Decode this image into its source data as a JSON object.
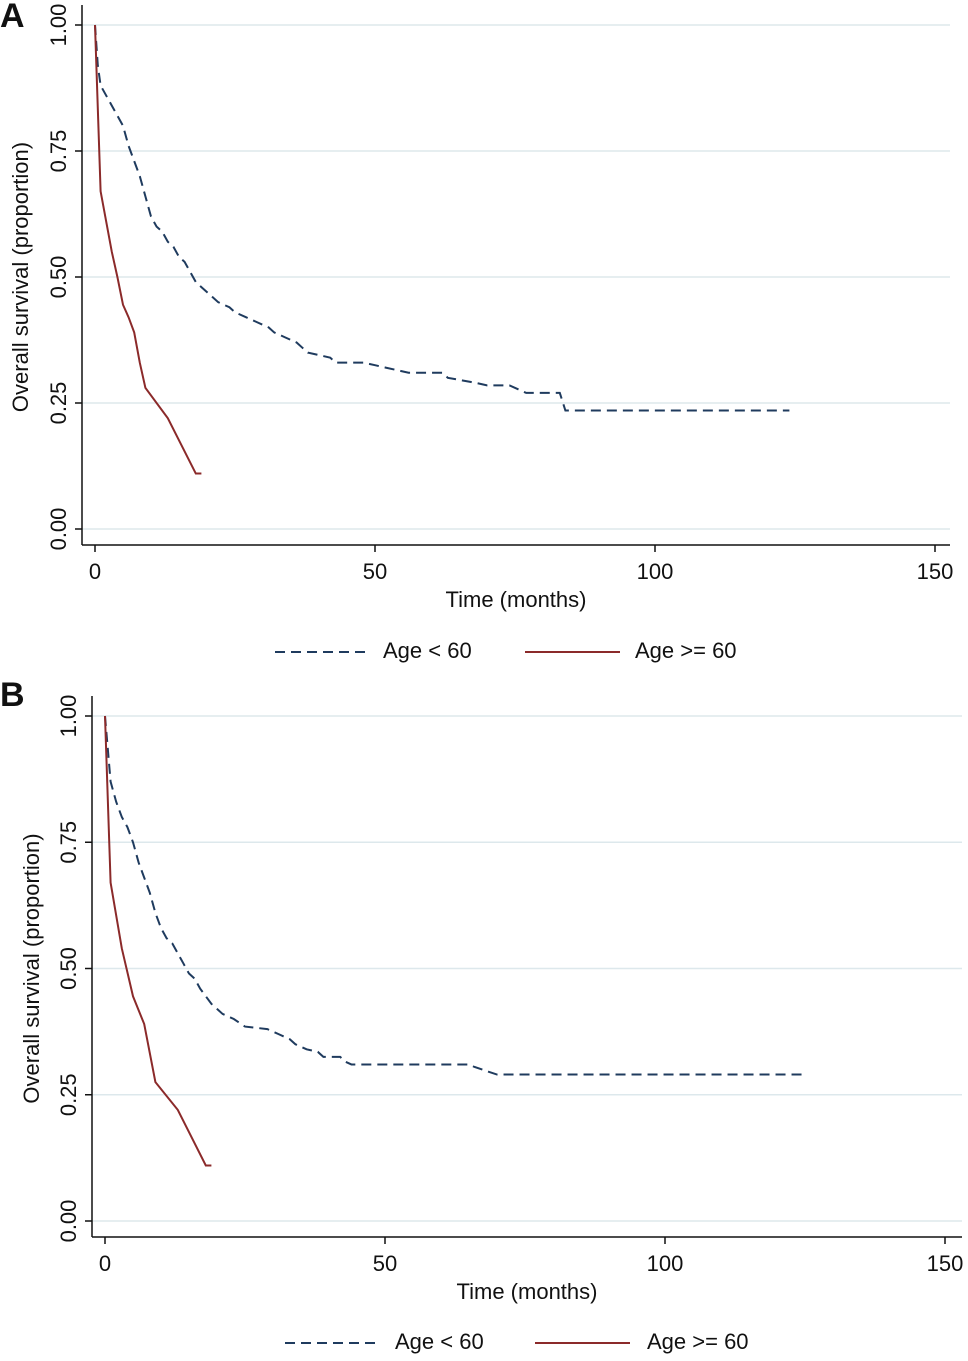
{
  "chart_data": [
    {
      "type": "line",
      "panel_label": "A",
      "xlabel": "Time (months)",
      "ylabel": "Overall survival (proportion)",
      "xlim": [
        0,
        150
      ],
      "xticks": [
        0,
        50,
        100,
        150
      ],
      "ylim": [
        0,
        1
      ],
      "yticks": [
        {
          "value": 0,
          "label": "0.00"
        },
        {
          "value": 0.25,
          "label": "0.25"
        },
        {
          "value": 0.5,
          "label": "0.50"
        },
        {
          "value": 0.75,
          "label": "0.75"
        },
        {
          "value": 1,
          "label": "1.00"
        }
      ],
      "grid": true,
      "legend": "bottom",
      "series": [
        {
          "name": "Age < 60",
          "color": "#1f3b5e",
          "dashed": true,
          "x": [
            0,
            0.5,
            1,
            2,
            3,
            4,
            5,
            6,
            7,
            8,
            9,
            10,
            11,
            12,
            13,
            14,
            15,
            16,
            17,
            18,
            19,
            20,
            21,
            22,
            24,
            25,
            27,
            29,
            31,
            32,
            34,
            36,
            37,
            38,
            40,
            42,
            43,
            48,
            50,
            52,
            54,
            56,
            62,
            63,
            68,
            70,
            74,
            76,
            77,
            83,
            84,
            124
          ],
          "values": [
            1.0,
            0.92,
            0.88,
            0.86,
            0.84,
            0.82,
            0.8,
            0.76,
            0.73,
            0.7,
            0.66,
            0.62,
            0.6,
            0.59,
            0.57,
            0.56,
            0.54,
            0.53,
            0.51,
            0.49,
            0.48,
            0.47,
            0.46,
            0.45,
            0.44,
            0.43,
            0.42,
            0.41,
            0.4,
            0.39,
            0.38,
            0.37,
            0.36,
            0.35,
            0.345,
            0.34,
            0.33,
            0.33,
            0.325,
            0.32,
            0.315,
            0.31,
            0.31,
            0.3,
            0.29,
            0.285,
            0.285,
            0.275,
            0.27,
            0.27,
            0.235,
            0.235
          ]
        },
        {
          "name": "Age >= 60",
          "color": "#8b2a2a",
          "dashed": false,
          "x": [
            0,
            1,
            2,
            3,
            4,
            5,
            6,
            7,
            8,
            9,
            13,
            18,
            19
          ],
          "values": [
            1.0,
            0.67,
            0.61,
            0.55,
            0.5,
            0.445,
            0.42,
            0.39,
            0.33,
            0.28,
            0.22,
            0.11,
            0.11
          ]
        }
      ]
    },
    {
      "type": "line",
      "panel_label": "B",
      "xlabel": "Time (months)",
      "ylabel": "Overall survival (proportion)",
      "xlim": [
        0,
        150
      ],
      "xticks": [
        0,
        50,
        100,
        150
      ],
      "ylim": [
        0,
        1
      ],
      "yticks": [
        {
          "value": 0,
          "label": "0.00"
        },
        {
          "value": 0.25,
          "label": "0.25"
        },
        {
          "value": 0.5,
          "label": "0.50"
        },
        {
          "value": 0.75,
          "label": "0.75"
        },
        {
          "value": 1,
          "label": "1.00"
        }
      ],
      "grid": true,
      "legend": "bottom",
      "series": [
        {
          "name": "Age < 60",
          "color": "#1f3b5e",
          "dashed": true,
          "x": [
            0,
            1,
            2,
            3,
            4,
            5,
            6,
            7,
            8,
            9,
            10,
            11,
            12,
            13,
            14,
            15,
            16,
            17,
            18,
            19,
            20,
            21,
            23,
            25,
            29,
            31,
            33,
            34,
            36,
            38,
            39,
            42,
            43,
            44,
            65,
            66,
            70,
            125
          ],
          "values": [
            1.0,
            0.87,
            0.83,
            0.8,
            0.78,
            0.75,
            0.71,
            0.68,
            0.65,
            0.61,
            0.58,
            0.56,
            0.55,
            0.53,
            0.51,
            0.49,
            0.48,
            0.46,
            0.445,
            0.43,
            0.42,
            0.41,
            0.4,
            0.385,
            0.38,
            0.37,
            0.36,
            0.35,
            0.34,
            0.335,
            0.325,
            0.325,
            0.315,
            0.31,
            0.31,
            0.305,
            0.29,
            0.29
          ]
        },
        {
          "name": "Age >= 60",
          "color": "#8b2a2a",
          "dashed": false,
          "x": [
            0,
            1,
            3,
            5,
            7,
            9,
            13,
            18,
            19
          ],
          "values": [
            1.0,
            0.67,
            0.54,
            0.445,
            0.39,
            0.275,
            0.22,
            0.11,
            0.11
          ]
        }
      ]
    }
  ]
}
